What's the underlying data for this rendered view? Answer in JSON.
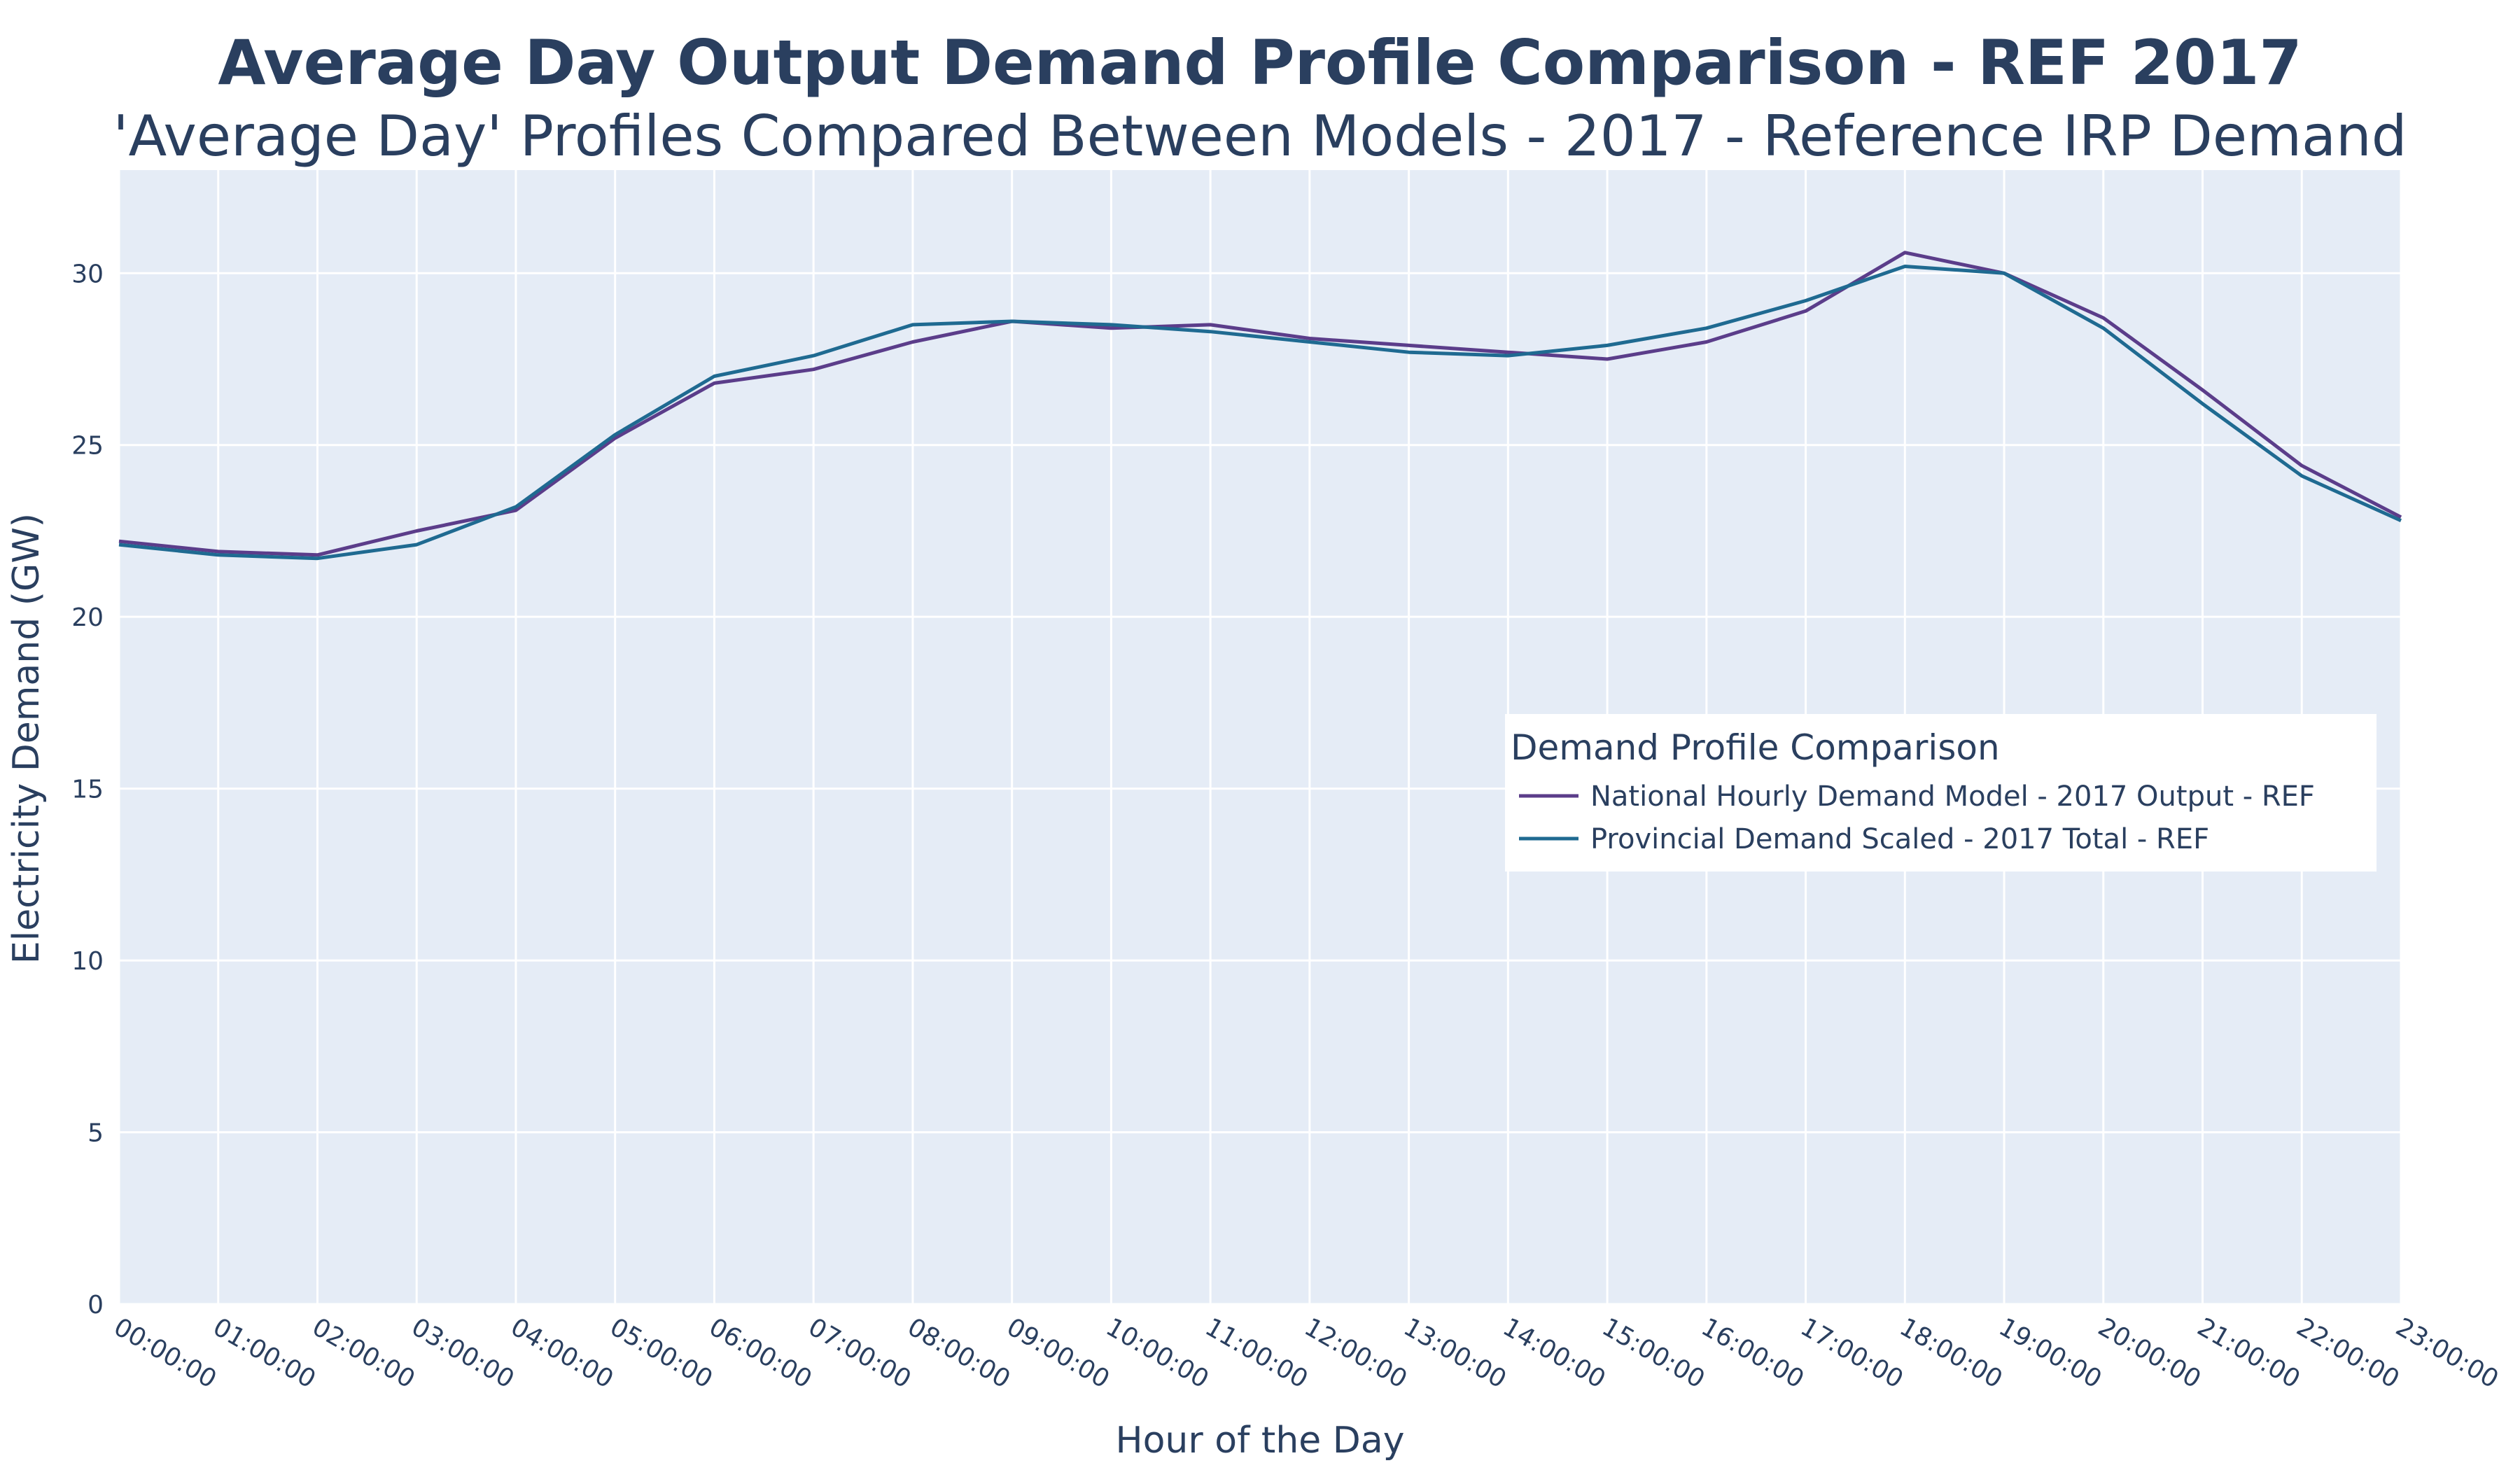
{
  "chart_data": {
    "type": "line",
    "title": "Average Day Output Demand Profile Comparison - REF 2017",
    "subtitle": "'Average Day' Profiles Compared Between Models - 2017 - Reference IRP Demand",
    "xlabel": "Hour of the Day",
    "ylabel": "Electricity Demand (GW)",
    "ylim": [
      0,
      33
    ],
    "yticks": [
      0,
      5,
      10,
      15,
      20,
      25,
      30
    ],
    "grid": true,
    "legend_title": "Demand Profile Comparison",
    "legend_placement": "right-center",
    "x": [
      "00:00:00",
      "01:00:00",
      "02:00:00",
      "03:00:00",
      "04:00:00",
      "05:00:00",
      "06:00:00",
      "07:00:00",
      "08:00:00",
      "09:00:00",
      "10:00:00",
      "11:00:00",
      "12:00:00",
      "13:00:00",
      "14:00:00",
      "15:00:00",
      "16:00:00",
      "17:00:00",
      "18:00:00",
      "19:00:00",
      "20:00:00",
      "21:00:00",
      "22:00:00",
      "23:00:00"
    ],
    "series": [
      {
        "name": "National Hourly Demand Model - 2017 Output - REF",
        "color": "#5b3d8a",
        "values": [
          22.2,
          21.9,
          21.8,
          22.5,
          23.1,
          25.2,
          26.8,
          27.2,
          28.0,
          28.6,
          28.4,
          28.5,
          28.1,
          27.9,
          27.7,
          27.5,
          28.0,
          28.9,
          30.6,
          30.0,
          28.7,
          26.6,
          24.4,
          22.9
        ]
      },
      {
        "name": "Provincial Demand Scaled - 2017 Total - REF",
        "color": "#1f6a91",
        "values": [
          22.1,
          21.8,
          21.7,
          22.1,
          23.2,
          25.3,
          27.0,
          27.6,
          28.5,
          28.6,
          28.5,
          28.3,
          28.0,
          27.7,
          27.6,
          27.9,
          28.4,
          29.2,
          30.2,
          30.0,
          28.4,
          26.2,
          24.1,
          22.8
        ]
      }
    ]
  }
}
